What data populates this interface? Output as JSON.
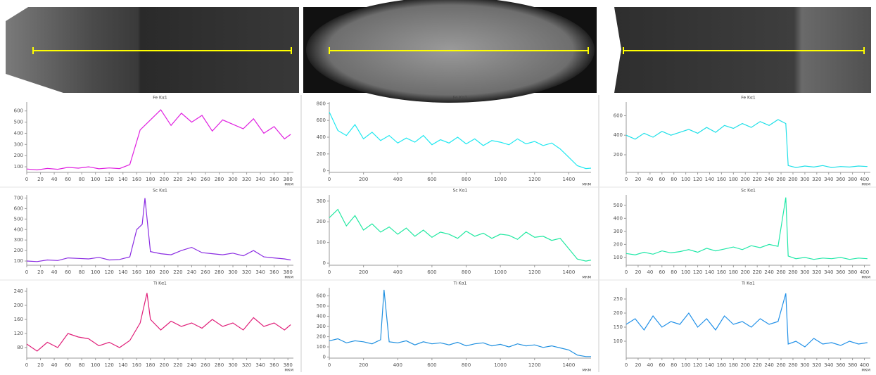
{
  "chart_data": [
    {
      "type": "line",
      "title": "Fe Kα1",
      "x_label": "мкм",
      "color": "#e020e0",
      "x": [
        0,
        15,
        30,
        45,
        60,
        75,
        90,
        105,
        120,
        135,
        150,
        165,
        180,
        195,
        210,
        225,
        240,
        255,
        270,
        285,
        300,
        315,
        330,
        345,
        360,
        375,
        384
      ],
      "values": [
        80,
        72,
        85,
        78,
        95,
        88,
        100,
        82,
        90,
        84,
        120,
        430,
        520,
        610,
        470,
        580,
        500,
        560,
        420,
        520,
        480,
        440,
        530,
        400,
        460,
        350,
        390
      ],
      "xlim": [
        0,
        388
      ],
      "ylim": [
        50,
        680
      ],
      "xticks": [
        0,
        20,
        40,
        60,
        80,
        100,
        120,
        140,
        160,
        180,
        200,
        220,
        240,
        260,
        280,
        300,
        320,
        340,
        360,
        380
      ],
      "yticks": [
        100,
        200,
        300,
        400,
        500,
        600
      ]
    },
    {
      "type": "line",
      "title": "Sc Kα1",
      "x_label": "мкм",
      "color": "#8a2be2",
      "x": [
        0,
        15,
        30,
        45,
        60,
        75,
        90,
        105,
        120,
        135,
        150,
        160,
        168,
        172,
        180,
        195,
        210,
        225,
        240,
        255,
        270,
        285,
        300,
        315,
        330,
        345,
        360,
        375,
        384
      ],
      "values": [
        100,
        95,
        110,
        105,
        130,
        125,
        120,
        135,
        110,
        115,
        140,
        400,
        450,
        700,
        190,
        170,
        160,
        200,
        230,
        180,
        170,
        160,
        175,
        150,
        200,
        140,
        130,
        120,
        110
      ],
      "xlim": [
        0,
        388
      ],
      "ylim": [
        60,
        730
      ],
      "xticks": [
        0,
        20,
        40,
        60,
        80,
        100,
        120,
        140,
        160,
        180,
        200,
        220,
        240,
        260,
        280,
        300,
        320,
        340,
        360,
        380
      ],
      "yticks": [
        100,
        200,
        300,
        400,
        500,
        600,
        700
      ]
    },
    {
      "type": "line",
      "title": "Ti Kα1",
      "x_label": "мкм",
      "color": "#e0207a",
      "x": [
        0,
        15,
        30,
        45,
        60,
        75,
        90,
        105,
        120,
        135,
        150,
        165,
        175,
        180,
        195,
        210,
        225,
        240,
        255,
        270,
        285,
        300,
        315,
        330,
        345,
        360,
        375,
        384
      ],
      "values": [
        90,
        70,
        95,
        80,
        120,
        110,
        105,
        85,
        95,
        80,
        100,
        150,
        235,
        160,
        130,
        155,
        140,
        150,
        135,
        160,
        140,
        150,
        130,
        165,
        140,
        150,
        130,
        145
      ],
      "xlim": [
        0,
        388
      ],
      "ylim": [
        50,
        250
      ],
      "xticks": [
        0,
        20,
        40,
        60,
        80,
        100,
        120,
        140,
        160,
        180,
        200,
        220,
        240,
        260,
        280,
        300,
        320,
        340,
        360,
        380
      ],
      "yticks": [
        80,
        120,
        160,
        200,
        240
      ]
    },
    {
      "type": "line",
      "title": "Fe Kα1",
      "x_label": "мкм",
      "color": "#20e8f0",
      "x": [
        0,
        50,
        100,
        150,
        200,
        250,
        300,
        350,
        400,
        450,
        500,
        550,
        600,
        650,
        700,
        750,
        800,
        850,
        900,
        950,
        1000,
        1050,
        1100,
        1150,
        1200,
        1250,
        1300,
        1350,
        1400,
        1450,
        1500,
        1530
      ],
      "values": [
        700,
        480,
        420,
        550,
        380,
        460,
        360,
        420,
        330,
        390,
        340,
        420,
        310,
        370,
        330,
        400,
        320,
        380,
        300,
        360,
        340,
        310,
        380,
        320,
        350,
        300,
        330,
        260,
        160,
        60,
        25,
        30
      ],
      "xlim": [
        0,
        1530
      ],
      "ylim": [
        -20,
        820
      ],
      "xticks": [
        0,
        200,
        400,
        600,
        800,
        1000,
        1200,
        1400
      ],
      "yticks": [
        0,
        200,
        400,
        600,
        800
      ]
    },
    {
      "type": "line",
      "title": "Sc Kα1",
      "x_label": "мкм",
      "color": "#20e8a0",
      "x": [
        0,
        50,
        100,
        150,
        200,
        250,
        300,
        350,
        400,
        450,
        500,
        550,
        600,
        650,
        700,
        750,
        800,
        850,
        900,
        950,
        1000,
        1050,
        1100,
        1150,
        1200,
        1250,
        1300,
        1350,
        1400,
        1450,
        1500,
        1530
      ],
      "values": [
        220,
        260,
        180,
        230,
        160,
        190,
        150,
        175,
        140,
        170,
        130,
        160,
        125,
        150,
        140,
        120,
        155,
        130,
        145,
        120,
        140,
        135,
        115,
        150,
        125,
        130,
        110,
        120,
        70,
        20,
        10,
        15
      ],
      "xlim": [
        0,
        1530
      ],
      "ylim": [
        -10,
        330
      ],
      "xticks": [
        0,
        200,
        400,
        600,
        800,
        1000,
        1200,
        1400
      ],
      "yticks": [
        0,
        100,
        200,
        300
      ]
    },
    {
      "type": "line",
      "title": "Ti Kα1",
      "x_label": "мкм",
      "color": "#2090e0",
      "x": [
        0,
        50,
        100,
        150,
        200,
        250,
        300,
        320,
        350,
        400,
        450,
        500,
        550,
        600,
        650,
        700,
        750,
        800,
        850,
        900,
        950,
        1000,
        1050,
        1100,
        1150,
        1200,
        1250,
        1300,
        1350,
        1400,
        1450,
        1500,
        1530
      ],
      "values": [
        160,
        180,
        140,
        160,
        150,
        130,
        170,
        660,
        150,
        140,
        160,
        120,
        150,
        130,
        140,
        120,
        145,
        110,
        130,
        140,
        110,
        125,
        100,
        130,
        110,
        120,
        95,
        110,
        90,
        70,
        20,
        5,
        5
      ],
      "xlim": [
        0,
        1530
      ],
      "ylim": [
        -10,
        680
      ],
      "xticks": [
        0,
        200,
        400,
        600,
        800,
        1000,
        1200,
        1400
      ],
      "yticks": [
        0,
        100,
        200,
        300,
        400,
        500,
        600
      ]
    },
    {
      "type": "line",
      "title": "Fe Kα1",
      "x_label": "мкм",
      "color": "#20e0e8",
      "x": [
        0,
        15,
        30,
        45,
        60,
        75,
        90,
        105,
        120,
        135,
        150,
        165,
        180,
        195,
        210,
        225,
        240,
        255,
        268,
        272,
        285,
        300,
        315,
        330,
        345,
        360,
        375,
        390,
        405
      ],
      "values": [
        400,
        360,
        420,
        380,
        440,
        400,
        430,
        460,
        420,
        480,
        430,
        500,
        470,
        520,
        480,
        540,
        500,
        560,
        520,
        90,
        70,
        85,
        75,
        90,
        70,
        80,
        75,
        85,
        80
      ],
      "xlim": [
        0,
        410
      ],
      "ylim": [
        20,
        740
      ],
      "xticks": [
        0,
        20,
        40,
        60,
        80,
        100,
        120,
        140,
        160,
        180,
        200,
        220,
        240,
        260,
        280,
        300,
        320,
        340,
        360,
        380,
        400
      ],
      "yticks": [
        200,
        400,
        600
      ]
    },
    {
      "type": "line",
      "title": "Sc Kα1",
      "x_label": "мкм",
      "color": "#20e8a8",
      "x": [
        0,
        15,
        30,
        45,
        60,
        75,
        90,
        105,
        120,
        135,
        150,
        165,
        180,
        195,
        210,
        225,
        240,
        255,
        268,
        272,
        285,
        300,
        315,
        330,
        345,
        360,
        375,
        390,
        405
      ],
      "values": [
        130,
        120,
        140,
        125,
        150,
        135,
        145,
        160,
        140,
        170,
        150,
        165,
        180,
        160,
        190,
        175,
        200,
        185,
        560,
        110,
        90,
        100,
        85,
        95,
        90,
        100,
        85,
        95,
        90
      ],
      "xlim": [
        0,
        410
      ],
      "ylim": [
        40,
        580
      ],
      "xticks": [
        0,
        20,
        40,
        60,
        80,
        100,
        120,
        140,
        160,
        180,
        200,
        220,
        240,
        260,
        280,
        300,
        320,
        340,
        360,
        380,
        400
      ],
      "yticks": [
        100,
        200,
        300,
        400,
        500
      ]
    },
    {
      "type": "line",
      "title": "Ti Kα1",
      "x_label": "мкм",
      "color": "#2090e8",
      "x": [
        0,
        15,
        30,
        45,
        60,
        75,
        90,
        105,
        120,
        135,
        150,
        165,
        180,
        195,
        210,
        225,
        240,
        255,
        268,
        272,
        285,
        300,
        315,
        330,
        345,
        360,
        375,
        390,
        405
      ],
      "values": [
        160,
        180,
        140,
        190,
        150,
        170,
        160,
        200,
        150,
        180,
        140,
        190,
        160,
        170,
        150,
        180,
        160,
        170,
        270,
        90,
        100,
        80,
        110,
        90,
        95,
        85,
        100,
        90,
        95
      ],
      "xlim": [
        0,
        410
      ],
      "ylim": [
        40,
        290
      ],
      "xticks": [
        0,
        20,
        40,
        60,
        80,
        100,
        120,
        140,
        160,
        180,
        200,
        220,
        240,
        260,
        280,
        300,
        320,
        340,
        360,
        380,
        400
      ],
      "yticks": [
        100,
        150,
        200,
        250
      ]
    }
  ]
}
